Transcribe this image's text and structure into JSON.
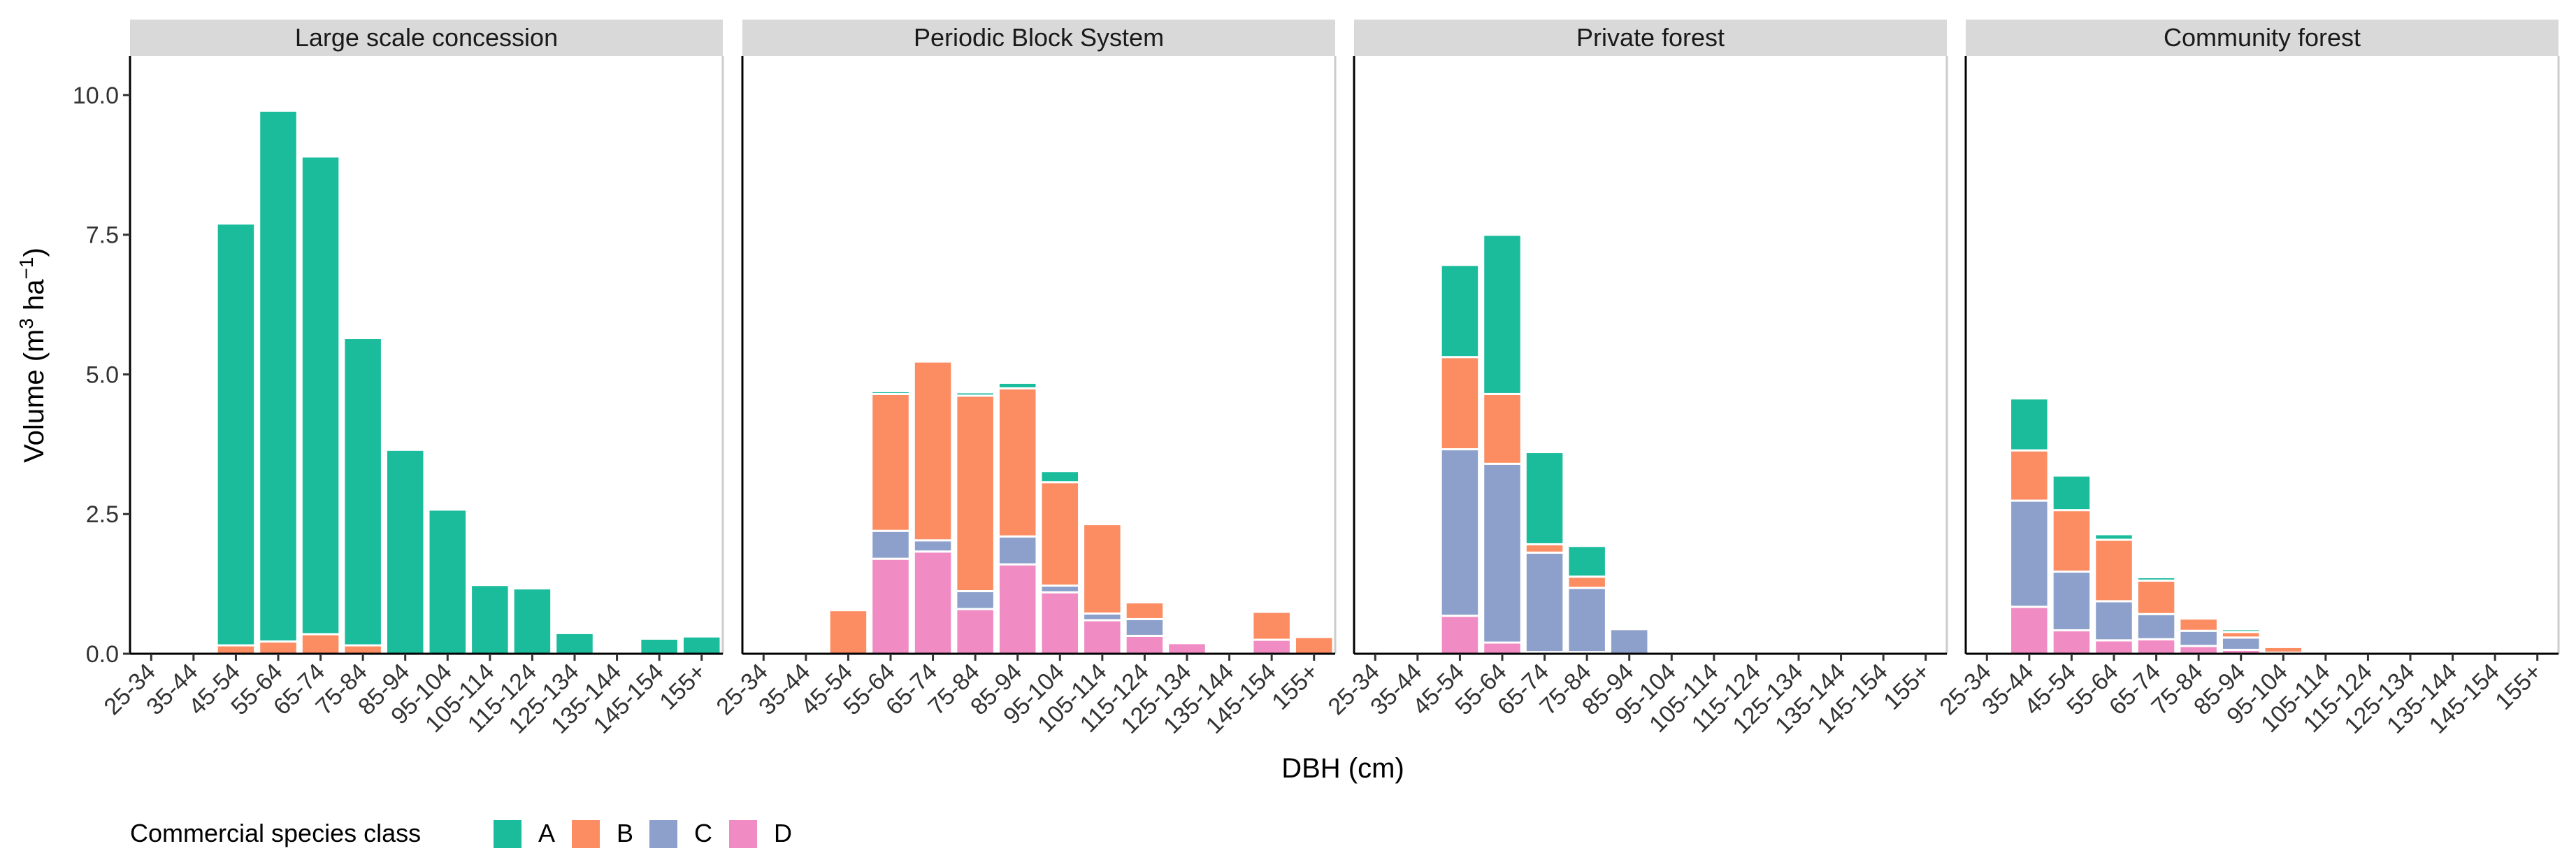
{
  "chart_data": {
    "type": "bar",
    "stacked": true,
    "xlabel": "DBH (cm)",
    "ylabel": {
      "prefix": "Volume (m",
      "sup1": "3",
      "mid": " ha",
      "sup2": "−1",
      "suffix": ")"
    },
    "ylim": [
      0,
      10.7
    ],
    "yticks": [
      0.0,
      2.5,
      5.0,
      7.5,
      10.0
    ],
    "ytick_labels": [
      "0.0",
      "2.5",
      "5.0",
      "7.5",
      "10.0"
    ],
    "categories": [
      "25-34",
      "35-44",
      "45-54",
      "55-64",
      "65-74",
      "75-84",
      "85-94",
      "95-104",
      "105-114",
      "115-124",
      "125-134",
      "135-144",
      "145-154",
      "155+"
    ],
    "stack_order": [
      "D",
      "C",
      "B",
      "A"
    ],
    "legend": {
      "title": "Commercial species class",
      "position": "bottom-left",
      "entries": [
        {
          "key": "A",
          "label": "A",
          "color": "#1ABC9C"
        },
        {
          "key": "B",
          "label": "B",
          "color": "#FC8D62"
        },
        {
          "key": "C",
          "label": "C",
          "color": "#8DA0CB"
        },
        {
          "key": "D",
          "label": "D",
          "color": "#F08BC4"
        }
      ]
    },
    "panels": [
      {
        "title": "Large scale concession",
        "series": {
          "A": [
            0,
            0,
            7.55,
            9.5,
            8.55,
            5.5,
            3.65,
            2.58,
            1.23,
            1.17,
            0.37,
            0,
            0.27,
            0.31
          ],
          "B": [
            0,
            0,
            0.15,
            0.22,
            0.35,
            0.15,
            0,
            0,
            0,
            0,
            0,
            0,
            0,
            0
          ],
          "C": [
            0,
            0,
            0,
            0,
            0,
            0,
            0,
            0,
            0,
            0,
            0,
            0,
            0,
            0
          ],
          "D": [
            0,
            0,
            0,
            0,
            0,
            0,
            0,
            0,
            0,
            0,
            0,
            0,
            0,
            0
          ]
        }
      },
      {
        "title": "Periodic Block System",
        "series": {
          "A": [
            0,
            0,
            0,
            0.05,
            0,
            0.06,
            0.1,
            0.2,
            0,
            0,
            0,
            0,
            0,
            0
          ],
          "B": [
            0,
            0,
            0.78,
            2.45,
            3.2,
            3.5,
            2.65,
            1.85,
            1.6,
            0.3,
            0,
            0,
            0.5,
            0.3
          ],
          "C": [
            0,
            0,
            0,
            0.5,
            0.2,
            0.32,
            0.5,
            0.12,
            0.12,
            0.3,
            0,
            0,
            0,
            0
          ],
          "D": [
            0,
            0,
            0,
            1.7,
            1.83,
            0.8,
            1.6,
            1.1,
            0.6,
            0.32,
            0.19,
            0,
            0.25,
            0
          ]
        }
      },
      {
        "title": "Private forest",
        "series": {
          "A": [
            0,
            0,
            1.65,
            2.85,
            1.65,
            0.55,
            0,
            0,
            0,
            0,
            0,
            0,
            0,
            0
          ],
          "B": [
            0,
            0,
            1.65,
            1.25,
            0.15,
            0.2,
            0,
            0,
            0,
            0,
            0,
            0,
            0,
            0
          ],
          "C": [
            0,
            0,
            2.98,
            3.2,
            1.78,
            1.15,
            0.44,
            0,
            0,
            0,
            0,
            0,
            0,
            0
          ],
          "D": [
            0,
            0,
            0.68,
            0.2,
            0.03,
            0.03,
            0,
            0,
            0,
            0,
            0,
            0,
            0,
            0
          ]
        }
      },
      {
        "title": "Community forest",
        "series": {
          "A": [
            0,
            0.93,
            0.62,
            0.1,
            0.06,
            0,
            0.05,
            0,
            0,
            0,
            0,
            0,
            0,
            0
          ],
          "B": [
            0,
            0.9,
            1.1,
            1.1,
            0.6,
            0.22,
            0.1,
            0.1,
            0,
            0,
            0,
            0,
            0,
            0
          ],
          "C": [
            0,
            1.9,
            1.05,
            0.7,
            0.45,
            0.27,
            0.22,
            0.02,
            0,
            0,
            0,
            0,
            0,
            0
          ],
          "D": [
            0,
            0.84,
            0.42,
            0.24,
            0.26,
            0.14,
            0.07,
            0,
            0,
            0,
            0,
            0,
            0,
            0
          ]
        }
      }
    ]
  }
}
